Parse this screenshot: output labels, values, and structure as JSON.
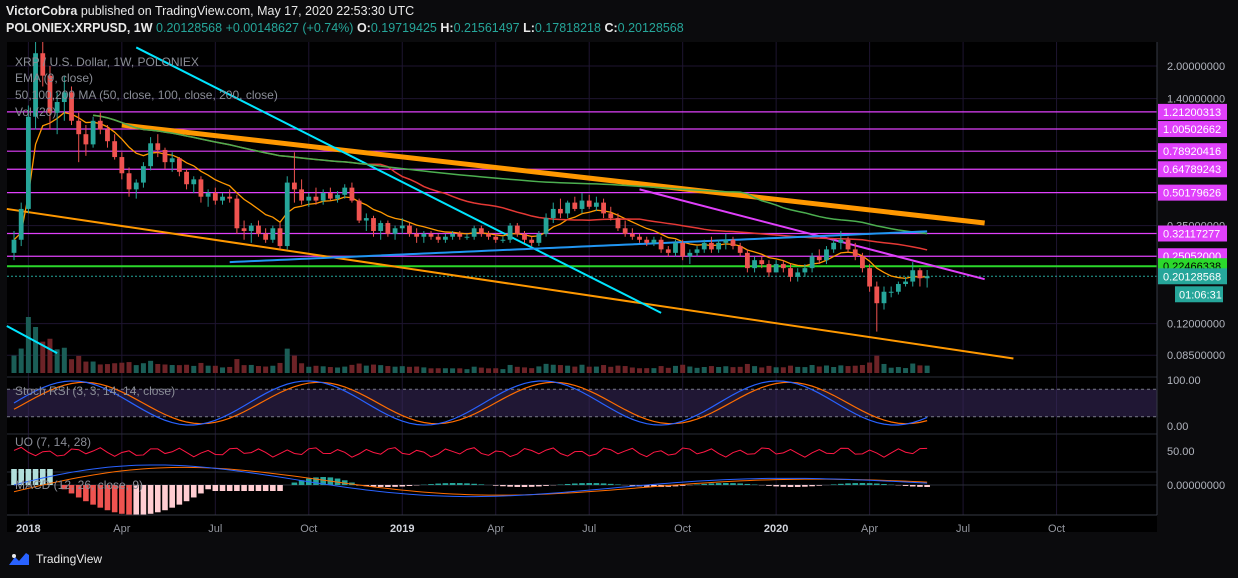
{
  "header": {
    "publisher": "VictorCobra",
    "published_text": "published on TradingView.com, May 17, 2020 22:53:30 UTC",
    "symbol": "POLONIEX:XRPUSD, 1W",
    "last": "0.20128568",
    "change": "+0.00148627 (+0.74%)",
    "o_label": "O:",
    "o_value": "0.19719425",
    "h_label": "H:",
    "h_value": "0.21561497",
    "l_label": "L:",
    "l_value": "0.17818218",
    "c_label": "C:",
    "c_value": "0.20128568"
  },
  "legend": {
    "title": "XRP / U.S. Dollar, 1W, POLONIEX",
    "ema": "EMA (9, close)",
    "ma": "50,100,200 MA (50, close, 100, close, 200, close)",
    "vol": "Vol (20)",
    "stoch": "Stoch RSI (3, 3, 14, 14, close)",
    "uo": "UO (7, 14, 28)",
    "macd": "MACD (12, 26, close, 9)"
  },
  "chart_data": {
    "type": "candlestick",
    "title": "XRP / U.S. Dollar, 1W, POLONIEX",
    "y_scale": "log",
    "ylim": [
      0.07,
      2.6
    ],
    "price_ticks": [
      "2.00000000",
      "1.40000000",
      "0.35000000",
      "0.12000000",
      "0.08500000"
    ],
    "price_tick_values": [
      2.0,
      1.4,
      0.35,
      0.12,
      0.085
    ],
    "horizontal_levels": [
      {
        "value": 1.21200313,
        "label": "1.21200313",
        "color": "#e040fb"
      },
      {
        "value": 1.00502662,
        "label": "1.00502662",
        "color": "#e040fb"
      },
      {
        "value": 0.78920416,
        "label": "0.78920416",
        "color": "#e040fb"
      },
      {
        "value": 0.64789243,
        "label": "0.64789243",
        "color": "#e040fb"
      },
      {
        "value": 0.50179626,
        "label": "0.50179626",
        "color": "#e040fb"
      },
      {
        "value": 0.32117277,
        "label": "0.32117277",
        "color": "#e040fb"
      },
      {
        "value": 0.25052,
        "label": "0.25052000",
        "color": "#e040fb"
      },
      {
        "value": 0.22466338,
        "label": "0.22466338",
        "color": "#2bd82b"
      }
    ],
    "last_price": {
      "value": 0.20128568,
      "label": "0.20128568",
      "color": "#26a69a"
    },
    "countdown": "01:06:31",
    "x_ticks": [
      "2018",
      "Apr",
      "Jul",
      "Oct",
      "2019",
      "Apr",
      "Jul",
      "Oct",
      "2020",
      "Apr",
      "Jul",
      "Oct"
    ],
    "x_tick_bold": [
      true,
      false,
      false,
      false,
      true,
      false,
      false,
      false,
      true,
      false,
      false,
      false
    ],
    "x_tick_week_index": [
      2,
      15,
      28,
      41,
      54,
      67,
      80,
      93,
      106,
      119,
      132,
      145
    ],
    "candles": [
      [
        0.26,
        0.33,
        0.24,
        0.3
      ],
      [
        0.3,
        0.45,
        0.28,
        0.42
      ],
      [
        0.42,
        1.3,
        0.4,
        1.15
      ],
      [
        1.15,
        2.6,
        1.0,
        2.3
      ],
      [
        2.3,
        3.0,
        1.6,
        1.8
      ],
      [
        1.8,
        2.0,
        1.0,
        1.2
      ],
      [
        1.2,
        1.5,
        0.95,
        1.35
      ],
      [
        1.35,
        1.8,
        1.1,
        1.5
      ],
      [
        1.5,
        1.6,
        1.05,
        1.1
      ],
      [
        1.1,
        1.2,
        0.7,
        0.95
      ],
      [
        0.95,
        1.05,
        0.75,
        0.85
      ],
      [
        0.85,
        1.15,
        0.82,
        1.1
      ],
      [
        1.1,
        1.2,
        0.95,
        1.0
      ],
      [
        1.0,
        1.05,
        0.82,
        0.88
      ],
      [
        0.88,
        0.95,
        0.72,
        0.74
      ],
      [
        0.74,
        0.78,
        0.58,
        0.62
      ],
      [
        0.62,
        0.66,
        0.48,
        0.52
      ],
      [
        0.52,
        0.58,
        0.47,
        0.56
      ],
      [
        0.56,
        0.7,
        0.53,
        0.67
      ],
      [
        0.67,
        0.92,
        0.64,
        0.86
      ],
      [
        0.86,
        0.95,
        0.74,
        0.8
      ],
      [
        0.8,
        0.82,
        0.65,
        0.7
      ],
      [
        0.7,
        0.78,
        0.63,
        0.73
      ],
      [
        0.73,
        0.74,
        0.6,
        0.63
      ],
      [
        0.63,
        0.65,
        0.52,
        0.55
      ],
      [
        0.55,
        0.6,
        0.5,
        0.58
      ],
      [
        0.58,
        0.6,
        0.45,
        0.48
      ],
      [
        0.48,
        0.52,
        0.43,
        0.5
      ],
      [
        0.5,
        0.53,
        0.44,
        0.46
      ],
      [
        0.46,
        0.5,
        0.44,
        0.48
      ],
      [
        0.48,
        0.52,
        0.45,
        0.47
      ],
      [
        0.47,
        0.49,
        0.32,
        0.34
      ],
      [
        0.34,
        0.37,
        0.3,
        0.33
      ],
      [
        0.33,
        0.36,
        0.29,
        0.35
      ],
      [
        0.35,
        0.37,
        0.31,
        0.32
      ],
      [
        0.32,
        0.34,
        0.29,
        0.3
      ],
      [
        0.3,
        0.35,
        0.29,
        0.34
      ],
      [
        0.34,
        0.36,
        0.27,
        0.28
      ],
      [
        0.28,
        0.6,
        0.27,
        0.56
      ],
      [
        0.56,
        0.78,
        0.45,
        0.52
      ],
      [
        0.52,
        0.58,
        0.44,
        0.46
      ],
      [
        0.46,
        0.5,
        0.43,
        0.48
      ],
      [
        0.48,
        0.53,
        0.44,
        0.46
      ],
      [
        0.46,
        0.52,
        0.44,
        0.5
      ],
      [
        0.5,
        0.53,
        0.46,
        0.47
      ],
      [
        0.47,
        0.51,
        0.45,
        0.49
      ],
      [
        0.49,
        0.55,
        0.47,
        0.53
      ],
      [
        0.53,
        0.56,
        0.45,
        0.46
      ],
      [
        0.46,
        0.47,
        0.36,
        0.37
      ],
      [
        0.37,
        0.4,
        0.33,
        0.38
      ],
      [
        0.38,
        0.39,
        0.31,
        0.33
      ],
      [
        0.33,
        0.37,
        0.3,
        0.36
      ],
      [
        0.36,
        0.37,
        0.31,
        0.32
      ],
      [
        0.32,
        0.35,
        0.3,
        0.34
      ],
      [
        0.34,
        0.38,
        0.32,
        0.35
      ],
      [
        0.35,
        0.36,
        0.31,
        0.32
      ],
      [
        0.32,
        0.34,
        0.29,
        0.31
      ],
      [
        0.31,
        0.33,
        0.29,
        0.32
      ],
      [
        0.32,
        0.33,
        0.3,
        0.31
      ],
      [
        0.31,
        0.32,
        0.29,
        0.3
      ],
      [
        0.3,
        0.32,
        0.29,
        0.31
      ],
      [
        0.31,
        0.33,
        0.3,
        0.32
      ],
      [
        0.32,
        0.33,
        0.3,
        0.31
      ],
      [
        0.31,
        0.32,
        0.3,
        0.31
      ],
      [
        0.31,
        0.35,
        0.3,
        0.34
      ],
      [
        0.34,
        0.35,
        0.31,
        0.32
      ],
      [
        0.32,
        0.33,
        0.3,
        0.31
      ],
      [
        0.31,
        0.32,
        0.29,
        0.3
      ],
      [
        0.3,
        0.31,
        0.29,
        0.3
      ],
      [
        0.3,
        0.36,
        0.29,
        0.35
      ],
      [
        0.35,
        0.36,
        0.31,
        0.32
      ],
      [
        0.32,
        0.33,
        0.29,
        0.3
      ],
      [
        0.3,
        0.31,
        0.28,
        0.29
      ],
      [
        0.29,
        0.33,
        0.28,
        0.32
      ],
      [
        0.32,
        0.4,
        0.31,
        0.38
      ],
      [
        0.38,
        0.45,
        0.36,
        0.42
      ],
      [
        0.42,
        0.47,
        0.38,
        0.4
      ],
      [
        0.4,
        0.46,
        0.38,
        0.45
      ],
      [
        0.45,
        0.48,
        0.41,
        0.42
      ],
      [
        0.42,
        0.5,
        0.4,
        0.46
      ],
      [
        0.46,
        0.49,
        0.42,
        0.43
      ],
      [
        0.43,
        0.48,
        0.41,
        0.45
      ],
      [
        0.45,
        0.47,
        0.38,
        0.4
      ],
      [
        0.4,
        0.43,
        0.37,
        0.38
      ],
      [
        0.38,
        0.4,
        0.33,
        0.34
      ],
      [
        0.34,
        0.37,
        0.31,
        0.32
      ],
      [
        0.32,
        0.34,
        0.3,
        0.31
      ],
      [
        0.31,
        0.32,
        0.29,
        0.3
      ],
      [
        0.3,
        0.31,
        0.28,
        0.29
      ],
      [
        0.29,
        0.31,
        0.28,
        0.3
      ],
      [
        0.3,
        0.31,
        0.26,
        0.27
      ],
      [
        0.27,
        0.28,
        0.25,
        0.26
      ],
      [
        0.26,
        0.3,
        0.25,
        0.29
      ],
      [
        0.29,
        0.3,
        0.24,
        0.25
      ],
      [
        0.25,
        0.27,
        0.23,
        0.26
      ],
      [
        0.26,
        0.28,
        0.25,
        0.27
      ],
      [
        0.27,
        0.3,
        0.26,
        0.29
      ],
      [
        0.29,
        0.31,
        0.26,
        0.27
      ],
      [
        0.27,
        0.3,
        0.26,
        0.29
      ],
      [
        0.29,
        0.32,
        0.27,
        0.3
      ],
      [
        0.3,
        0.31,
        0.27,
        0.28
      ],
      [
        0.28,
        0.29,
        0.25,
        0.26
      ],
      [
        0.26,
        0.27,
        0.21,
        0.22
      ],
      [
        0.22,
        0.25,
        0.21,
        0.24
      ],
      [
        0.24,
        0.25,
        0.22,
        0.23
      ],
      [
        0.23,
        0.24,
        0.2,
        0.21
      ],
      [
        0.21,
        0.24,
        0.21,
        0.23
      ],
      [
        0.23,
        0.24,
        0.21,
        0.22
      ],
      [
        0.22,
        0.23,
        0.19,
        0.2
      ],
      [
        0.2,
        0.22,
        0.19,
        0.21
      ],
      [
        0.21,
        0.23,
        0.2,
        0.22
      ],
      [
        0.22,
        0.26,
        0.21,
        0.25
      ],
      [
        0.25,
        0.27,
        0.23,
        0.24
      ],
      [
        0.24,
        0.28,
        0.23,
        0.27
      ],
      [
        0.27,
        0.3,
        0.26,
        0.29
      ],
      [
        0.29,
        0.33,
        0.27,
        0.3
      ],
      [
        0.3,
        0.31,
        0.26,
        0.27
      ],
      [
        0.27,
        0.29,
        0.24,
        0.25
      ],
      [
        0.25,
        0.26,
        0.21,
        0.22
      ],
      [
        0.22,
        0.23,
        0.17,
        0.18
      ],
      [
        0.18,
        0.19,
        0.11,
        0.15
      ],
      [
        0.15,
        0.18,
        0.14,
        0.17
      ],
      [
        0.17,
        0.18,
        0.16,
        0.17
      ],
      [
        0.17,
        0.19,
        0.165,
        0.185
      ],
      [
        0.185,
        0.2,
        0.18,
        0.19
      ],
      [
        0.19,
        0.235,
        0.18,
        0.215
      ],
      [
        0.215,
        0.22,
        0.18,
        0.197
      ],
      [
        0.197,
        0.2156,
        0.178,
        0.2013
      ]
    ],
    "ema9_color": "#ff9800",
    "ma50_color": "#e53935",
    "ma100_color": "#4caf50",
    "ma200_color": "#2196f3",
    "trendline_orange_upper_color": "#ff9800",
    "trendline_orange_lower_color": "#ff9800",
    "trendline_cyan_color": "#00e5ff",
    "trendline_magenta_color": "#e040fb",
    "stoch_rsi": {
      "ticks": [
        "100.00",
        "0.00"
      ],
      "tick_values": [
        100,
        0
      ],
      "k_color": "#2962ff",
      "d_color": "#ff6d00",
      "band_color": "#3a2a5e"
    },
    "uo": {
      "ticks": [
        "50.00"
      ],
      "tick_values": [
        50
      ],
      "color": "#ff1744"
    },
    "macd": {
      "ticks": [
        "0.00000000"
      ],
      "tick_values": [
        0
      ],
      "macd_color": "#2962ff",
      "signal_color": "#ff6d00"
    }
  },
  "branding": {
    "name": "TradingView"
  }
}
